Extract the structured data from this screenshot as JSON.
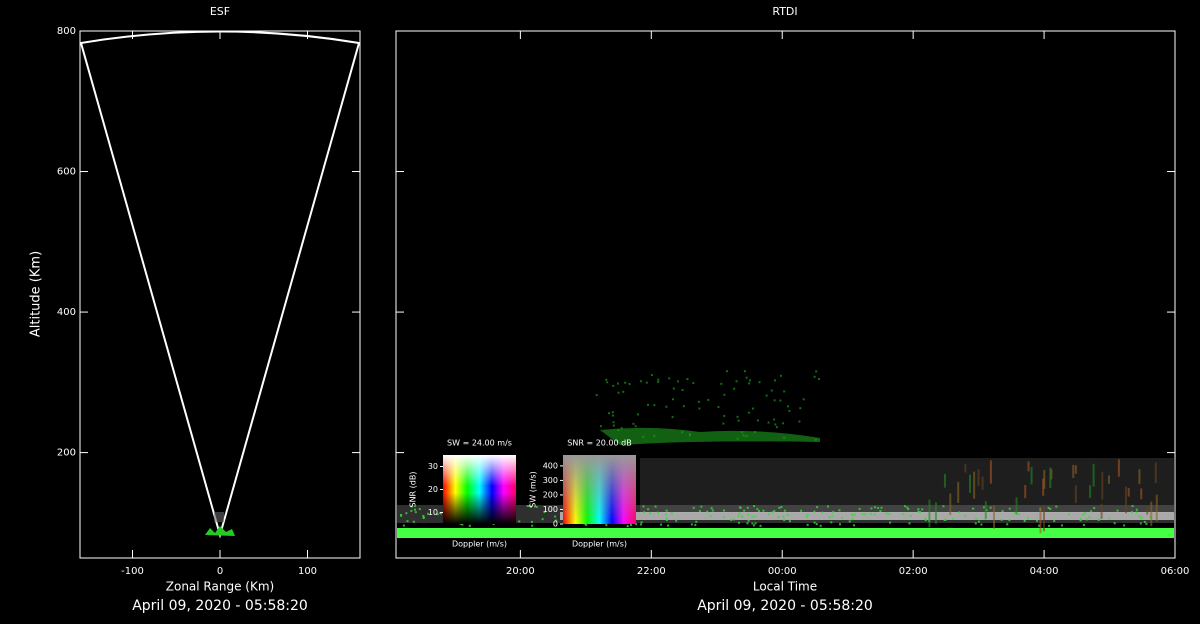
{
  "chart_data": [
    {
      "type": "fan",
      "title": "ESF",
      "subtitle": "April 09, 2020 - 05:58:20",
      "x_label": "Zonal Range (Km)",
      "y_label": "Altitude (Km)",
      "xlim": [
        -160,
        160
      ],
      "xticks": [
        -100,
        0,
        100
      ],
      "ylim": [
        50,
        800
      ],
      "yticks": [
        200,
        400,
        600,
        800
      ]
    },
    {
      "type": "rtdi",
      "title": "RTDI",
      "subtitle": "April 09, 2020 - 05:58:20",
      "x_label": "Local Time",
      "xlim": [
        18.1,
        30
      ],
      "xticks": [
        {
          "value": 20,
          "label": "20:00"
        },
        {
          "value": 22,
          "label": "22:00"
        },
        {
          "value": 24,
          "label": "00:00"
        },
        {
          "value": 26,
          "label": "02:00"
        },
        {
          "value": 28,
          "label": "04:00"
        },
        {
          "value": 30,
          "label": "06:00"
        }
      ],
      "ylim": [
        50,
        800
      ],
      "yticks": [
        200,
        400,
        600,
        800
      ],
      "colorbars": [
        {
          "title": "SW = 24.00 m/s",
          "x_label": "Doppler (m/s)",
          "y_label": "SNR (dB)",
          "ylim": [
            5,
            35
          ],
          "yticks": [
            10,
            20,
            30
          ]
        },
        {
          "title": "SNR = 20.00 dB",
          "x_label": "Doppler (m/s)",
          "y_label": "SW (m/s)",
          "ylim": [
            0,
            475
          ],
          "yticks": [
            0,
            100,
            200,
            300,
            400
          ]
        }
      ]
    }
  ]
}
